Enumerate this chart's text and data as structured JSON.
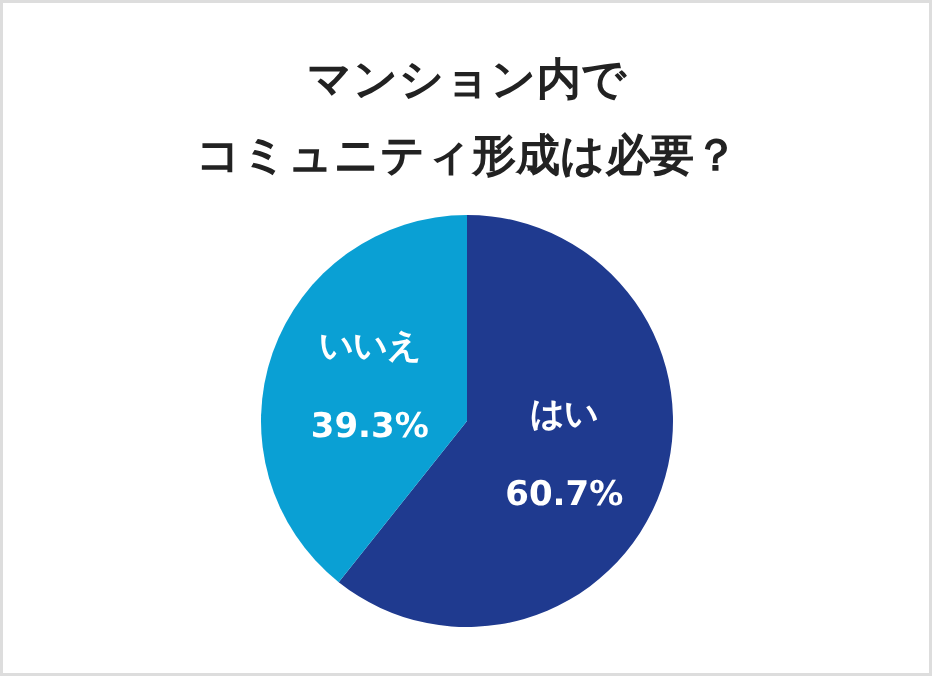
{
  "chart_data": {
    "type": "pie",
    "title": "マンション内で",
    "subtitle": "コミュニティ形成は必要？",
    "categories": [
      "はい",
      "いいえ"
    ],
    "values": [
      60.7,
      39.3
    ],
    "colors": [
      "#1f3a8f",
      "#0aa0d4"
    ],
    "value_labels": [
      "60.7%",
      "39.3%"
    ]
  }
}
